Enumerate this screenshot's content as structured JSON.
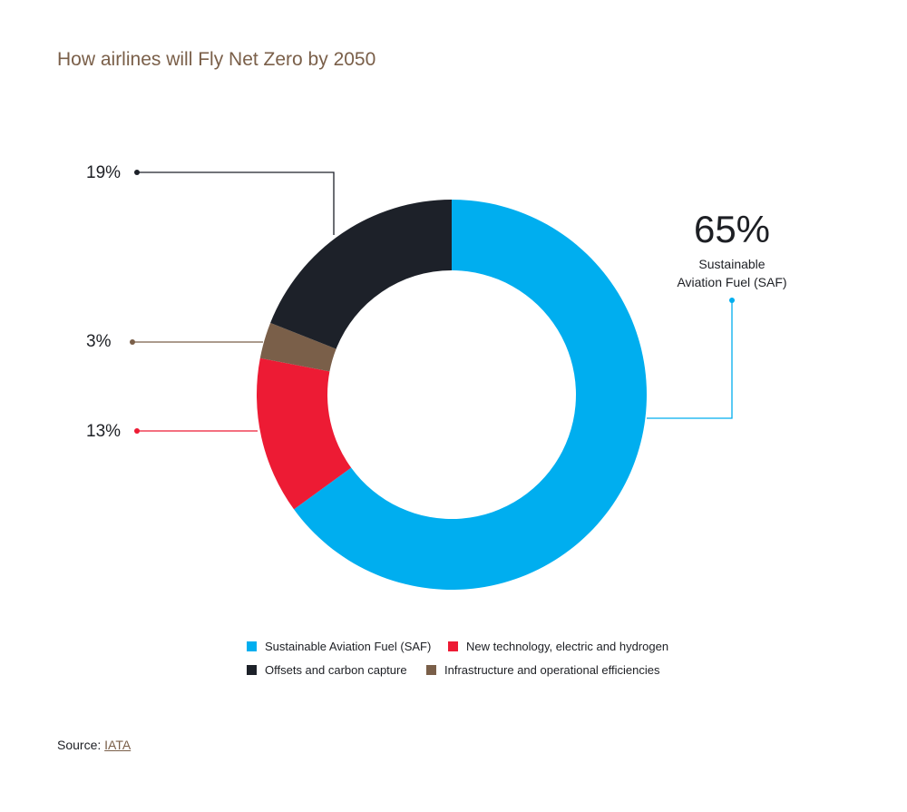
{
  "title": "How airlines will Fly Net Zero by 2050",
  "chart_data": {
    "type": "pie",
    "style": "donut",
    "title": "How airlines will Fly Net Zero by 2050",
    "categories": [
      "Sustainable Aviation Fuel (SAF)",
      "New technology, electric and hydrogen",
      "Infrastructure and operational efficiencies",
      "Offsets and carbon capture"
    ],
    "values": [
      65,
      13,
      3,
      19
    ],
    "value_labels": [
      "65%",
      "13%",
      "3%",
      "19%"
    ],
    "colors": [
      "#00aeef",
      "#ed1b34",
      "#7a5f49",
      "#1d2129"
    ],
    "callout": {
      "value": "65%",
      "label_line1": "Sustainable",
      "label_line2": "Aviation Fuel (SAF)"
    },
    "legend": [
      {
        "label": "Sustainable Aviation Fuel (SAF)",
        "color": "#00aeef"
      },
      {
        "label": "New technology, electric and hydrogen",
        "color": "#ed1b34"
      },
      {
        "label": "Offsets and carbon capture",
        "color": "#1d2129"
      },
      {
        "label": "Infrastructure and operational efficiencies",
        "color": "#7a5f49"
      }
    ],
    "legend_position": "bottom"
  },
  "source": {
    "prefix": "Source:",
    "link": "IATA"
  }
}
